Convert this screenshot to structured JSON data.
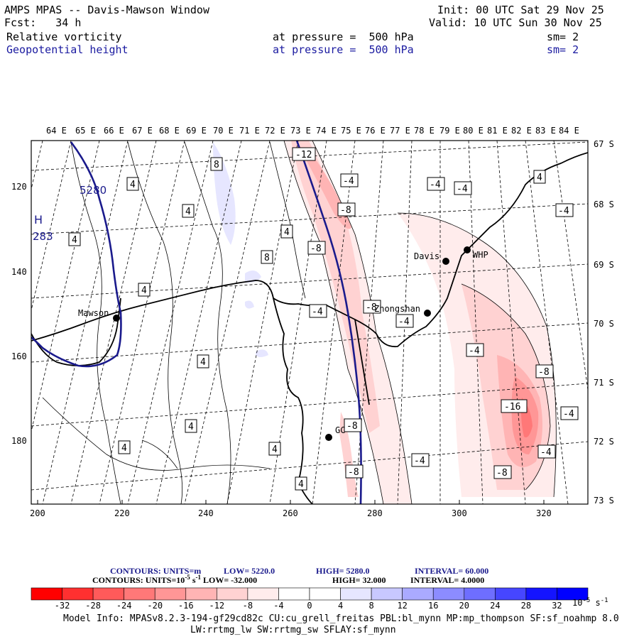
{
  "header": {
    "title": "AMPS MPAS -- Davis-Mawson Window",
    "fcst": "Fcst:   34 h",
    "init": "Init: 00 UTC Sat 29 Nov 25",
    "valid": "Valid: 10 UTC Sun 30 Nov 25",
    "field1": {
      "name": "Relative vorticity",
      "level": "at pressure =  500 hPa",
      "sm": "sm= 2"
    },
    "field2": {
      "name": "Geopotential height",
      "level": "at pressure =  500 hPa",
      "sm": "sm= 2"
    }
  },
  "map": {
    "lon_labels": [
      "64 E",
      "65 E",
      "66 E",
      "67 E",
      "68 E",
      "69 E",
      "70 E",
      "71 E",
      "72 E",
      "73 E",
      "74 E",
      "75 E",
      "76 E",
      "77 E",
      "78 E",
      "79 E",
      "80 E",
      "81 E",
      "82 E",
      "83 E",
      "84 E"
    ],
    "lat_labels": [
      "67 S",
      "68 S",
      "69 S",
      "70 S",
      "71 S",
      "72 S",
      "73 S"
    ],
    "x_ticks": [
      "200",
      "220",
      "240",
      "260",
      "280",
      "300",
      "320"
    ],
    "y_ticks": [
      "120",
      "140",
      "160",
      "180"
    ],
    "stations": [
      "Mawson",
      "Davis",
      "WHP",
      "Zhongshan",
      "GC"
    ],
    "height_contour_label": "5280",
    "high_marker": "H",
    "high_value": "283",
    "vort_labels": [
      "4",
      "4",
      "4",
      "4",
      "4",
      "4",
      "4",
      "4",
      "4",
      "4",
      "4",
      "8",
      "8",
      "-4",
      "-4",
      "-4",
      "-4",
      "-4",
      "-4",
      "-4",
      "-4",
      "-8",
      "-8",
      "-8",
      "-8",
      "-8",
      "-8",
      "-8",
      "-12",
      "-16"
    ]
  },
  "legend": {
    "line1": {
      "label": "CONTOURS:  UNITS=m",
      "low": "LOW=  5220.0",
      "high": "HIGH=  5280.0",
      "interval": "INTERVAL=   60.000"
    },
    "line2": {
      "label": "CONTOURS:  UNITS=10",
      "sup": "-5",
      "label2": " s",
      "sup2": "-1",
      "low": " LOW=  -32.000",
      "high": "HIGH=  32.000",
      "interval": "INTERVAL=   4.0000"
    },
    "colors": [
      "#ff0000",
      "#ff3030",
      "#ff5a5a",
      "#ff7878",
      "#ff9696",
      "#ffb4b4",
      "#ffd2d2",
      "#ffecec",
      "#ffffff",
      "#ffffff",
      "#e6e6ff",
      "#c8c8ff",
      "#aaaaff",
      "#8c8cff",
      "#6e6eff",
      "#4646ff",
      "#1414ff",
      "#0000ff"
    ],
    "ticks": [
      "-32",
      "-28",
      "-24",
      "-20",
      "-16",
      "-12",
      "-8",
      "-4",
      "0",
      "4",
      "8",
      "12",
      "16",
      "20",
      "24",
      "28",
      "32"
    ],
    "units": "10",
    "units_sup": "-5",
    "units_s": " s",
    "units_sup2": "-1"
  },
  "footer": {
    "line1": "Model Info: MPASv8.2.3-194-gf29cd82c CU:cu_grell_freitas PBL:bl_mynn MP:mp_thompson SF:sf_noahmp 8.0",
    "line2": "LW:rrtmg_lw SW:rrtmg_sw SFLAY:sf_mynn"
  }
}
